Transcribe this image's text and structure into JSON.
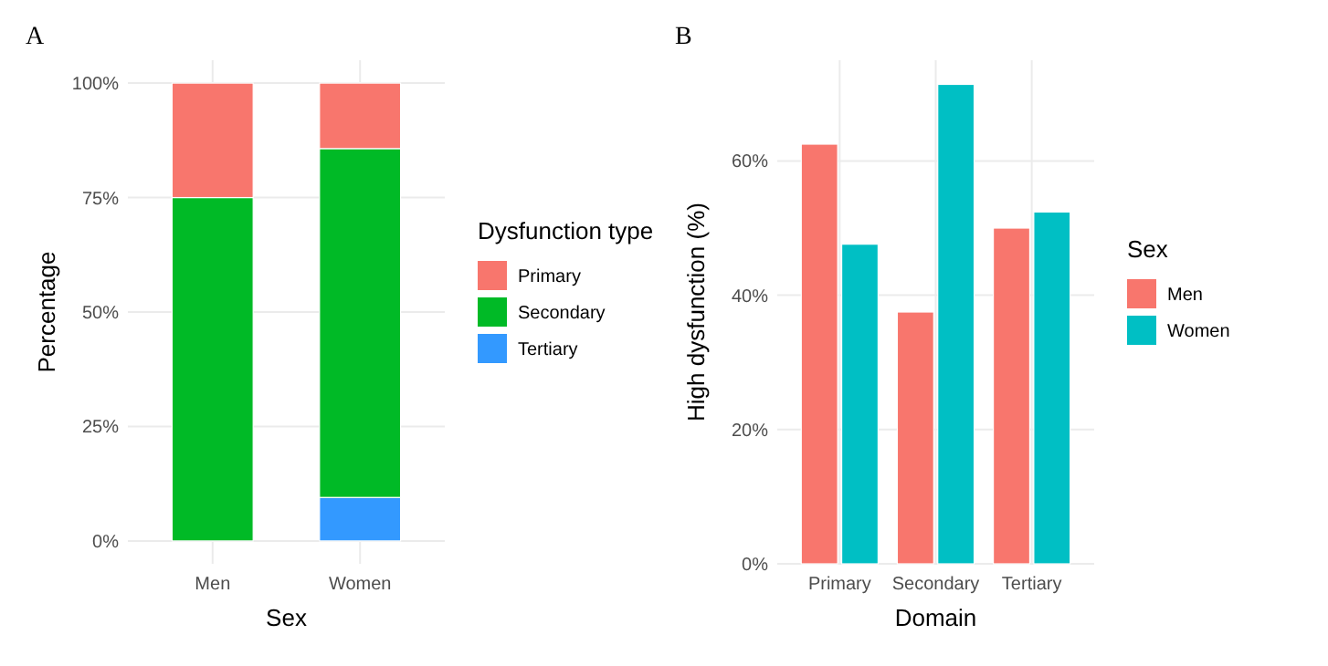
{
  "chart_data": [
    {
      "type": "bar",
      "stacked": true,
      "xlabel": "Sex",
      "ylabel": "Percentage",
      "legend_title": "Dysfunction type",
      "legend": "right",
      "grid": true,
      "annotations": [
        "A"
      ],
      "categories": [
        "Men",
        "Women"
      ],
      "ylim": [
        -5,
        105
      ],
      "yticks": [
        {
          "value": 0,
          "label": "0%"
        },
        {
          "value": 25,
          "label": "25%"
        },
        {
          "value": 50,
          "label": "50%"
        },
        {
          "value": 75,
          "label": "75%"
        },
        {
          "value": 100,
          "label": "100%"
        }
      ],
      "series": [
        {
          "name": "Tertiary",
          "color": "#3399ff",
          "values": [
            0,
            9.5
          ]
        },
        {
          "name": "Secondary",
          "color": "#00ba26",
          "values": [
            75,
            76.2
          ]
        },
        {
          "name": "Primary",
          "color": "#f8766d",
          "values": [
            25,
            14.3
          ]
        }
      ]
    },
    {
      "type": "bar",
      "xlabel": "Domain",
      "ylabel": "High dysfunction (%)",
      "legend_title": "Sex",
      "legend": "right",
      "grid": true,
      "annotations": [
        "B"
      ],
      "categories": [
        "Primary",
        "Secondary",
        "Tertiary"
      ],
      "ylim": [
        0,
        75
      ],
      "yticks": [
        {
          "value": 0,
          "label": "0%"
        },
        {
          "value": 20,
          "label": "20%"
        },
        {
          "value": 40,
          "label": "40%"
        },
        {
          "value": 60,
          "label": "60%"
        }
      ],
      "series": [
        {
          "name": "Men",
          "color": "#f8766d",
          "values": [
            62.5,
            37.5,
            50
          ]
        },
        {
          "name": "Women",
          "color": "#00bfc4",
          "values": [
            47.6,
            71.4,
            52.4
          ]
        }
      ]
    }
  ]
}
